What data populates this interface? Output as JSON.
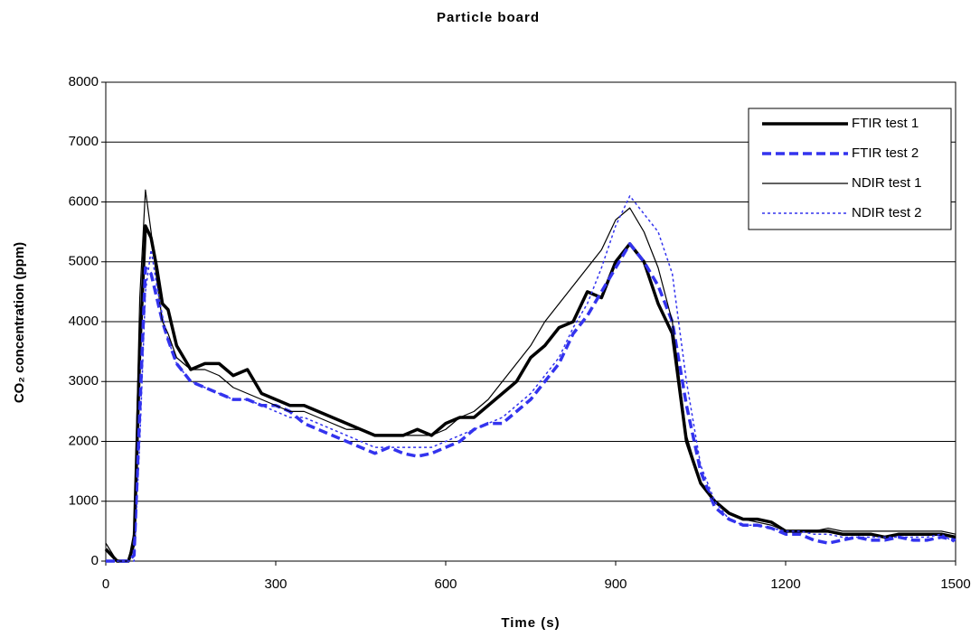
{
  "chart_data": {
    "type": "line",
    "title": "Particle board",
    "x_label": "Time (s)",
    "y_label": "CO₂ concentration (ppm)",
    "x": [
      0,
      20,
      40,
      50,
      60,
      70,
      80,
      90,
      100,
      110,
      125,
      150,
      175,
      200,
      225,
      250,
      275,
      300,
      325,
      350,
      375,
      400,
      425,
      450,
      475,
      500,
      525,
      550,
      575,
      600,
      625,
      650,
      675,
      700,
      725,
      750,
      775,
      800,
      825,
      850,
      875,
      900,
      925,
      950,
      975,
      1000,
      1025,
      1050,
      1075,
      1100,
      1125,
      1150,
      1175,
      1200,
      1225,
      1250,
      1275,
      1300,
      1325,
      1350,
      1375,
      1400,
      1425,
      1450,
      1475,
      1500
    ],
    "series": [
      {
        "name": "FTIR test 1",
        "color": "#000000",
        "width": 3.5,
        "dash": "solid",
        "values": [
          200,
          0,
          0,
          300,
          3500,
          5600,
          5400,
          4900,
          4300,
          4200,
          3600,
          3200,
          3300,
          3300,
          3100,
          3200,
          2800,
          2700,
          2600,
          2600,
          2500,
          2400,
          2300,
          2200,
          2100,
          2100,
          2100,
          2200,
          2100,
          2300,
          2400,
          2400,
          2600,
          2800,
          3000,
          3400,
          3600,
          3900,
          4000,
          4500,
          4400,
          5000,
          5300,
          5000,
          4300,
          3800,
          2000,
          1300,
          1000,
          800,
          700,
          700,
          650,
          500,
          500,
          500,
          500,
          450,
          450,
          450,
          400,
          450,
          450,
          450,
          450,
          400
        ]
      },
      {
        "name": "FTIR test 2",
        "color": "#3333ee",
        "width": 3.5,
        "dash": "dashed",
        "values": [
          0,
          0,
          0,
          100,
          2500,
          4900,
          4800,
          4400,
          4000,
          3700,
          3300,
          3000,
          2900,
          2800,
          2700,
          2700,
          2600,
          2600,
          2500,
          2300,
          2200,
          2100,
          2000,
          1900,
          1800,
          1900,
          1800,
          1750,
          1800,
          1900,
          2000,
          2200,
          2300,
          2300,
          2500,
          2700,
          3000,
          3300,
          3800,
          4100,
          4500,
          4900,
          5300,
          5000,
          4600,
          4000,
          2600,
          1500,
          900,
          700,
          600,
          600,
          550,
          450,
          450,
          350,
          300,
          350,
          400,
          350,
          350,
          400,
          350,
          350,
          400,
          350
        ]
      },
      {
        "name": "NDIR test 1",
        "color": "#000000",
        "width": 1.2,
        "dash": "solid",
        "values": [
          300,
          0,
          0,
          500,
          4400,
          6200,
          5500,
          4700,
          4000,
          3800,
          3400,
          3200,
          3200,
          3100,
          2900,
          2800,
          2700,
          2600,
          2500,
          2500,
          2400,
          2300,
          2200,
          2200,
          2100,
          2100,
          2100,
          2100,
          2100,
          2200,
          2400,
          2500,
          2700,
          3000,
          3300,
          3600,
          4000,
          4300,
          4600,
          4900,
          5200,
          5700,
          5900,
          5500,
          4900,
          4000,
          2100,
          1300,
          1000,
          800,
          700,
          650,
          600,
          500,
          500,
          500,
          550,
          500,
          500,
          500,
          500,
          500,
          500,
          500,
          500,
          450
        ]
      },
      {
        "name": "NDIR test 2",
        "color": "#3333ee",
        "width": 1.5,
        "dash": "dotted",
        "values": [
          0,
          0,
          0,
          0,
          2000,
          4500,
          5200,
          4600,
          4100,
          3700,
          3300,
          3000,
          2900,
          2800,
          2700,
          2700,
          2600,
          2500,
          2400,
          2400,
          2300,
          2200,
          2100,
          2000,
          1900,
          1900,
          1900,
          1900,
          1900,
          2000,
          2100,
          2200,
          2300,
          2400,
          2600,
          2800,
          3100,
          3400,
          3900,
          4300,
          4900,
          5600,
          6100,
          5800,
          5500,
          4800,
          3000,
          1600,
          1000,
          700,
          600,
          600,
          550,
          500,
          500,
          450,
          450,
          400,
          400,
          400,
          400,
          400,
          400,
          400,
          450,
          300
        ]
      }
    ],
    "xlim": [
      0,
      1500
    ],
    "xticks": [
      0,
      300,
      600,
      900,
      1200,
      1500
    ],
    "ylim": [
      0,
      8000
    ],
    "yticks": [
      0,
      1000,
      2000,
      3000,
      4000,
      5000,
      6000,
      7000,
      8000
    ],
    "grid": true,
    "legend": "upper right"
  }
}
